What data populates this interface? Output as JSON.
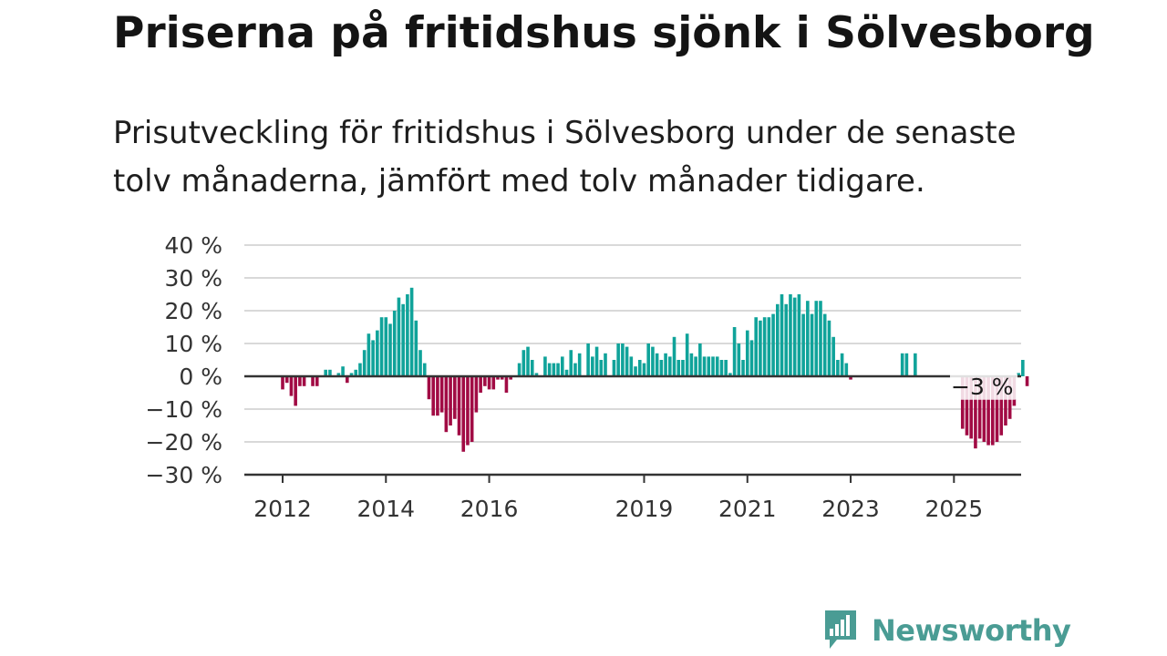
{
  "title": "Priserna på fritidshus sjönk i Sölvesborg",
  "subtitle": "Prisutveckling för fritidshus i Sölvesborg under de senaste tolv månaderna, jämfört med tolv månader tidigare.",
  "brand": {
    "name": "Newsworthy",
    "icon": "newsworthy-logo-icon",
    "color": "#4a9c94"
  },
  "colors": {
    "positive": "#10a39a",
    "negative": "#a10b44",
    "grid": "#d9d9d9",
    "axis": "#333333"
  },
  "chart_data": {
    "type": "bar",
    "title": "",
    "xlabel": "",
    "ylabel": "",
    "ylim": [
      -30,
      40
    ],
    "y_ticks": [
      40,
      30,
      20,
      10,
      0,
      -10,
      -20,
      -30
    ],
    "y_tick_labels": [
      "40 %",
      "30 %",
      "20 %",
      "10 %",
      "0 %",
      "−10 %",
      "−20 %",
      "−30 %"
    ],
    "x_ticks": [
      {
        "label": "2012",
        "index": 0
      },
      {
        "label": "2014",
        "index": 24
      },
      {
        "label": "2016",
        "index": 48
      },
      {
        "label": "2019",
        "index": 84
      },
      {
        "label": "2021",
        "index": 108
      },
      {
        "label": "2023",
        "index": 132
      },
      {
        "label": "2025",
        "index": 156
      }
    ],
    "grid": true,
    "legend": "none",
    "start": "2012-01",
    "frequency": "monthly",
    "annotation": {
      "text": "−3 %",
      "value": -3
    },
    "values": [
      -4,
      -2,
      -6,
      -9,
      -3,
      -3,
      null,
      -3,
      -3,
      0,
      2,
      2,
      0,
      1,
      3,
      -2,
      1,
      2,
      4,
      8,
      13,
      11,
      14,
      18,
      18,
      16,
      20,
      24,
      22,
      25,
      27,
      17,
      8,
      4,
      -7,
      -12,
      -12,
      -11,
      -17,
      -15,
      -13,
      -18,
      -23,
      -21,
      -20,
      -11,
      -5,
      -3,
      -4,
      -4,
      -1,
      -1,
      -5,
      -1,
      0,
      4,
      8,
      9,
      5,
      1,
      null,
      6,
      4,
      4,
      4,
      6,
      2,
      8,
      4,
      7,
      null,
      10,
      6,
      9,
      5,
      7,
      null,
      5,
      10,
      10,
      9,
      6,
      3,
      5,
      4,
      10,
      9,
      7,
      5,
      7,
      6,
      12,
      5,
      5,
      13,
      7,
      6,
      10,
      6,
      6,
      6,
      6,
      5,
      5,
      1,
      15,
      10,
      5,
      14,
      11,
      18,
      17,
      18,
      18,
      19,
      22,
      25,
      22,
      25,
      24,
      25,
      19,
      23,
      19,
      23,
      23,
      19,
      17,
      12,
      5,
      7,
      4,
      -1,
      null,
      null,
      null,
      null,
      null,
      null,
      null,
      null,
      null,
      null,
      null,
      7,
      7,
      null,
      7,
      null,
      null,
      null,
      null,
      null,
      null,
      null,
      null,
      null,
      null,
      -16,
      -18,
      -19,
      -22,
      -19,
      -20,
      -21,
      -21,
      -20,
      -18,
      -15,
      -13,
      -9,
      1,
      5,
      -3
    ]
  }
}
